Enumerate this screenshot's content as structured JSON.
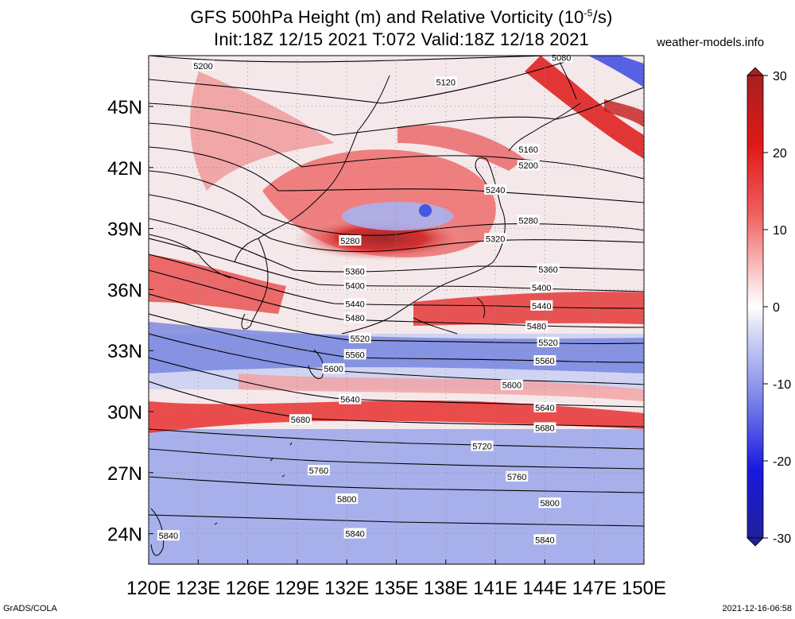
{
  "header": {
    "title_line1": "GFS 500hPa Height (m) and Relative Vorticity (10",
    "title_line1_sup": "-5",
    "title_line1_end": "/s)",
    "title_line2": "Init:18Z 12/15 2021 T:072 Valid:18Z 12/18 2021",
    "site": "weather-models.info"
  },
  "footer": {
    "software": "GrADS/COLA",
    "timestamp": "2021-12-16-06:58"
  },
  "map": {
    "lon_range": [
      120,
      150
    ],
    "lat_range": [
      22.5,
      47.5
    ],
    "lon_ticks": [
      {
        "value": 120,
        "label": "120E"
      },
      {
        "value": 123,
        "label": "123E"
      },
      {
        "value": 126,
        "label": "126E"
      },
      {
        "value": 129,
        "label": "129E"
      },
      {
        "value": 132,
        "label": "132E"
      },
      {
        "value": 135,
        "label": "135E"
      },
      {
        "value": 138,
        "label": "138E"
      },
      {
        "value": 141,
        "label": "141E"
      },
      {
        "value": 144,
        "label": "144E"
      },
      {
        "value": 147,
        "label": "147E"
      },
      {
        "value": 150,
        "label": "150E"
      }
    ],
    "lat_ticks": [
      {
        "value": 45,
        "label": "45N"
      },
      {
        "value": 42,
        "label": "42N"
      },
      {
        "value": 39,
        "label": "39N"
      },
      {
        "value": 36,
        "label": "36N"
      },
      {
        "value": 33,
        "label": "33N"
      },
      {
        "value": 30,
        "label": "30N"
      },
      {
        "value": 27,
        "label": "27N"
      },
      {
        "value": 24,
        "label": "24N"
      }
    ],
    "height_contours_m": [
      {
        "label": "5080",
        "lon": 145.0,
        "lat": 47.4
      },
      {
        "label": "5120",
        "lon": 138.0,
        "lat": 46.2
      },
      {
        "label": "5160",
        "lon": 143.0,
        "lat": 42.9
      },
      {
        "label": "5200",
        "lon": 123.3,
        "lat": 47.0
      },
      {
        "label": "5200",
        "lon": 143.0,
        "lat": 42.1
      },
      {
        "label": "5240",
        "lon": 141.0,
        "lat": 40.9
      },
      {
        "label": "5280",
        "lon": 132.2,
        "lat": 38.4
      },
      {
        "label": "5280",
        "lon": 143.0,
        "lat": 39.4
      },
      {
        "label": "5320",
        "lon": 141.0,
        "lat": 38.5
      },
      {
        "label": "5360",
        "lon": 132.5,
        "lat": 36.9
      },
      {
        "label": "5360",
        "lon": 144.2,
        "lat": 37.0
      },
      {
        "label": "5400",
        "lon": 132.5,
        "lat": 36.2
      },
      {
        "label": "5400",
        "lon": 143.8,
        "lat": 36.1
      },
      {
        "label": "5440",
        "lon": 132.5,
        "lat": 35.3
      },
      {
        "label": "5440",
        "lon": 143.8,
        "lat": 35.2
      },
      {
        "label": "5480",
        "lon": 132.5,
        "lat": 34.6
      },
      {
        "label": "5480",
        "lon": 143.5,
        "lat": 34.2
      },
      {
        "label": "5520",
        "lon": 132.8,
        "lat": 33.6
      },
      {
        "label": "5520",
        "lon": 144.2,
        "lat": 33.4
      },
      {
        "label": "5560",
        "lon": 132.5,
        "lat": 32.8
      },
      {
        "label": "5560",
        "lon": 144.0,
        "lat": 32.5
      },
      {
        "label": "5600",
        "lon": 131.2,
        "lat": 32.1
      },
      {
        "label": "5600",
        "lon": 142.0,
        "lat": 31.3
      },
      {
        "label": "5640",
        "lon": 132.2,
        "lat": 30.6
      },
      {
        "label": "5640",
        "lon": 144.0,
        "lat": 30.2
      },
      {
        "label": "5680",
        "lon": 129.2,
        "lat": 29.6
      },
      {
        "label": "5680",
        "lon": 144.0,
        "lat": 29.2
      },
      {
        "label": "5720",
        "lon": 140.2,
        "lat": 28.3
      },
      {
        "label": "5760",
        "lon": 130.3,
        "lat": 27.1
      },
      {
        "label": "5760",
        "lon": 142.3,
        "lat": 26.8
      },
      {
        "label": "5800",
        "lon": 132.0,
        "lat": 25.7
      },
      {
        "label": "5800",
        "lon": 144.3,
        "lat": 25.5
      },
      {
        "label": "5840",
        "lon": 121.2,
        "lat": 23.9
      },
      {
        "label": "5840",
        "lon": 132.5,
        "lat": 24.0
      },
      {
        "label": "5840",
        "lon": 144.0,
        "lat": 23.7
      }
    ]
  },
  "colorbar": {
    "units": "10^-5/s",
    "range": [
      -30,
      30
    ],
    "ticks": [
      {
        "value": 30,
        "label": "30"
      },
      {
        "value": 20,
        "label": "20"
      },
      {
        "value": 10,
        "label": "10"
      },
      {
        "value": 0,
        "label": "0"
      },
      {
        "value": -10,
        "label": "-10"
      },
      {
        "value": -20,
        "label": "-20"
      },
      {
        "value": -30,
        "label": "-30"
      }
    ],
    "colors": {
      "max": "#a52020",
      "high": "#e81c1c",
      "mid_high": "#f08080",
      "zero": "#ffffff",
      "mid_low": "#8890e8",
      "low": "#1a1ae0",
      "min": "#20209a"
    }
  }
}
